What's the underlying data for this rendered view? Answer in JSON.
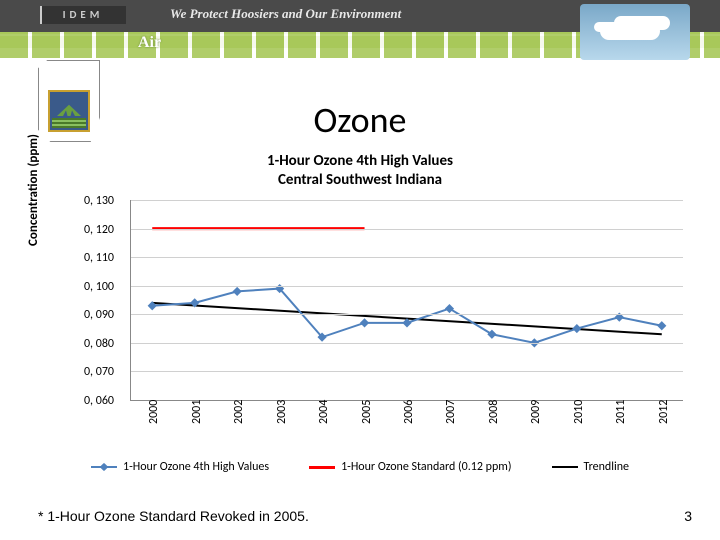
{
  "banner": {
    "tagline": "We Protect Hoosiers and Our Environment",
    "section": "Air",
    "logo_text": "IDEM"
  },
  "title": "Ozone",
  "subtitle_line1": "1-Hour Ozone 4th High Values",
  "subtitle_line2": "Central Southwest Indiana",
  "chart": {
    "type": "line",
    "y_label": "Concentration (ppm)",
    "y_ticks": [
      "0, 130",
      "0, 120",
      "0, 110",
      "0, 100",
      "0, 090",
      "0, 080",
      "0, 070",
      "0, 060"
    ],
    "y_values": [
      0.13,
      0.12,
      0.11,
      0.1,
      0.09,
      0.08,
      0.07,
      0.06
    ],
    "ylim": [
      0.06,
      0.13
    ],
    "x_ticks": [
      "2000",
      "2001",
      "2002",
      "2003",
      "2004",
      "2005",
      "2006",
      "2007",
      "2008",
      "2009",
      "2010",
      "2011",
      "2012"
    ],
    "series": {
      "values": {
        "label": "1-Hour Ozone  4th High Values",
        "color": "#4f81bd",
        "marker": "diamond",
        "marker_size": 6,
        "line_width": 2,
        "data": [
          0.093,
          0.094,
          0.098,
          0.099,
          0.082,
          0.087,
          0.087,
          0.092,
          0.083,
          0.08,
          0.085,
          0.089,
          0.086
        ]
      },
      "standard": {
        "label": "1-Hour Ozone Standard (0.12 ppm)",
        "color": "#ff0000",
        "line_width": 3,
        "data": [
          0.12,
          0.12,
          0.12,
          0.12,
          0.12,
          0.12
        ],
        "x_end_index": 5
      },
      "trendline": {
        "label": "Trendline",
        "color": "#000000",
        "line_width": 2,
        "start": 0.094,
        "end": 0.083
      }
    },
    "background_color": "#ffffff",
    "grid_color": "#d0d0d0",
    "tick_fontsize": 12,
    "axis_label_fontsize": 13
  },
  "legend": {
    "items": [
      {
        "key": "values",
        "label": "1-Hour Ozone  4th High Values"
      },
      {
        "key": "standard",
        "label": "1-Hour Ozone Standard (0.12 ppm)"
      },
      {
        "key": "trendline",
        "label": "Trendline"
      }
    ]
  },
  "footnote": "* 1-Hour Ozone Standard Revoked in 2005.",
  "page_number": "3"
}
